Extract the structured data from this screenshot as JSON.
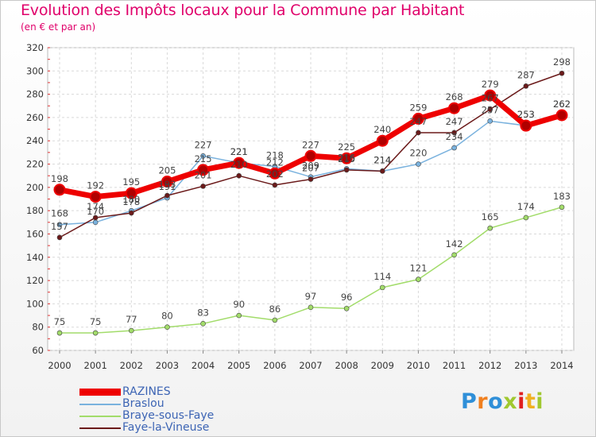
{
  "chart_data": {
    "type": "line",
    "title": "Evolution des Impôts locaux pour la Commune par Habitant",
    "subtitle": "(en € et par an)",
    "xlabel": "",
    "ylabel": "",
    "categories": [
      "2000",
      "2001",
      "2002",
      "2003",
      "2004",
      "2005",
      "2006",
      "2007",
      "2008",
      "2009",
      "2010",
      "2011",
      "2012",
      "2013",
      "2014"
    ],
    "ylim": [
      60,
      320
    ],
    "yticks": [
      60,
      80,
      100,
      120,
      140,
      160,
      180,
      200,
      220,
      240,
      260,
      280,
      300,
      320
    ],
    "grid": true,
    "legend_position": "bottom-left",
    "series": [
      {
        "name": "RAZINES",
        "color": "#ee0000",
        "values": [
          198,
          192,
          195,
          205,
          215,
          221,
          212,
          227,
          225,
          240,
          259,
          268,
          279,
          253,
          262
        ]
      },
      {
        "name": "Braslou",
        "color": "#7ab2de",
        "values": [
          168,
          170,
          180,
          191,
          227,
          221,
          218,
          209,
          216,
          214,
          220,
          234,
          257,
          253,
          262
        ]
      },
      {
        "name": "Braye-sous-Faye",
        "color": "#a2dc6a",
        "values": [
          75,
          75,
          77,
          80,
          83,
          90,
          86,
          97,
          96,
          114,
          121,
          142,
          165,
          174,
          183
        ]
      },
      {
        "name": "Faye-la-Vineuse",
        "color": "#6b1a1a",
        "values": [
          157,
          174,
          178,
          193,
          201,
          210,
          202,
          207,
          215,
          214,
          247,
          247,
          267,
          287,
          298
        ]
      }
    ]
  },
  "logo": {
    "letters": [
      "P",
      "r",
      "o",
      "x",
      "i",
      "t",
      "i"
    ],
    "colors": [
      "#2f8fd8",
      "#f08020",
      "#2f8fd8",
      "#a0c830",
      "#e02020",
      "#f0b020",
      "#a0c830"
    ]
  }
}
